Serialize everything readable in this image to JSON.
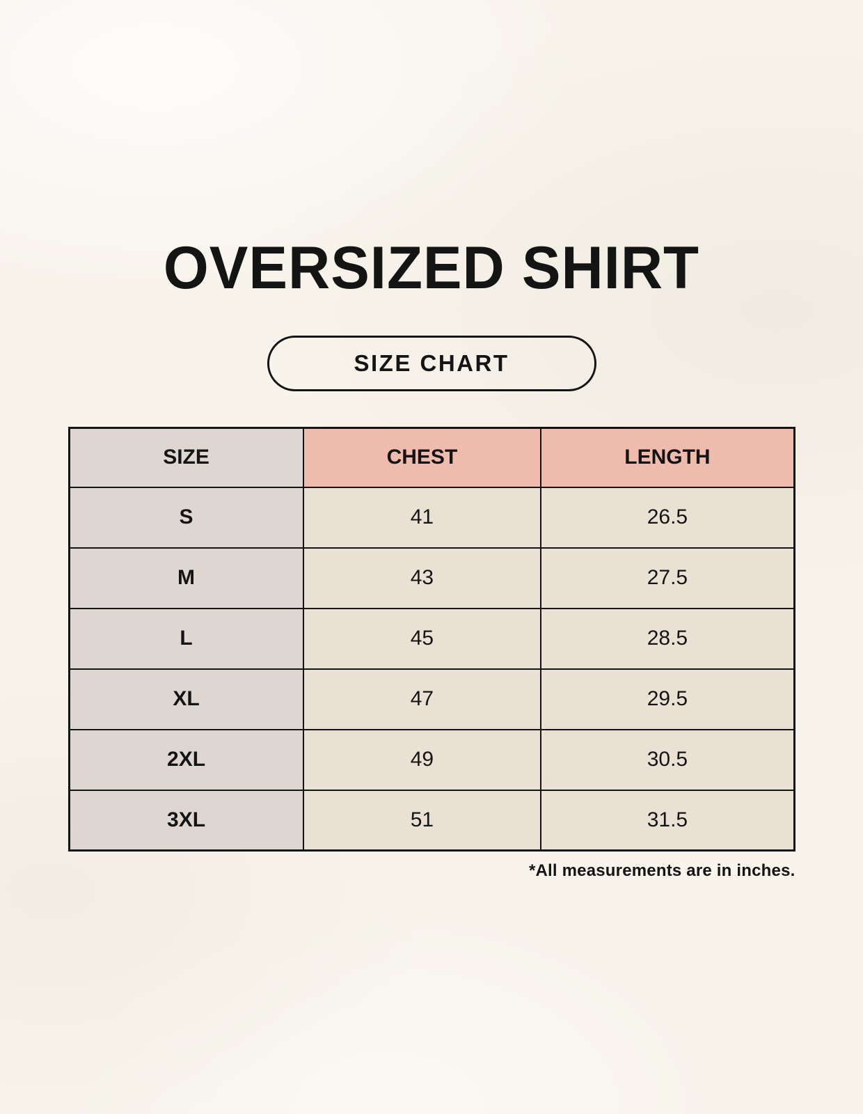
{
  "title": "OVERSIZED SHIRT",
  "badge_label": "SIZE CHART",
  "footnote": "*All measurements are in inches.",
  "table": {
    "headers": [
      "SIZE",
      "CHEST",
      "LENGTH"
    ],
    "rows": [
      {
        "size": "S",
        "chest": "41",
        "length": "26.5"
      },
      {
        "size": "M",
        "chest": "43",
        "length": "27.5"
      },
      {
        "size": "L",
        "chest": "45",
        "length": "28.5"
      },
      {
        "size": "XL",
        "chest": "47",
        "length": "29.5"
      },
      {
        "size": "2XL",
        "chest": "49",
        "length": "30.5"
      },
      {
        "size": "3XL",
        "chest": "51",
        "length": "31.5"
      }
    ]
  },
  "chart_data": {
    "type": "table",
    "title": "OVERSIZED SHIRT",
    "columns": [
      "SIZE",
      "CHEST",
      "LENGTH"
    ],
    "rows": [
      [
        "S",
        "41",
        "26.5"
      ],
      [
        "M",
        "43",
        "27.5"
      ],
      [
        "L",
        "45",
        "28.5"
      ],
      [
        "XL",
        "47",
        "29.5"
      ],
      [
        "2XL",
        "49",
        "30.5"
      ],
      [
        "3XL",
        "51",
        "31.5"
      ]
    ],
    "note": "*All measurements are in inches."
  },
  "colors": {
    "page-bg": "#f8f4ec",
    "header-accent": "#eebbac",
    "size-column-bg": "#ded6d1",
    "cell-bg": "#e9e1d4",
    "border": "#141414",
    "text": "#141414"
  }
}
